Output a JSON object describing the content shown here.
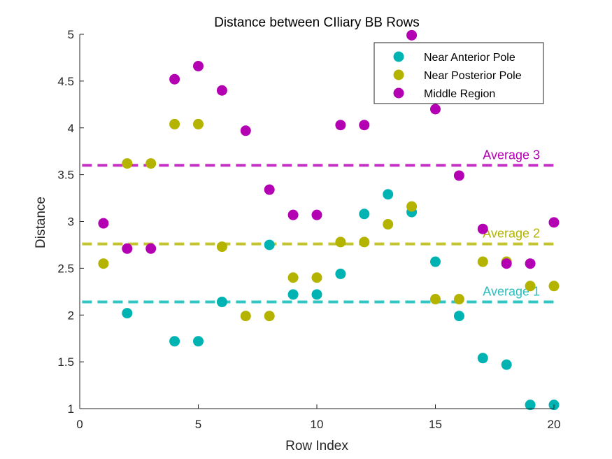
{
  "chart_data": {
    "type": "scatter",
    "title": "Distance between CIliary BB Rows",
    "xlabel": "Row Index",
    "ylabel": "Distance",
    "xlim": [
      0,
      20
    ],
    "ylim": [
      1,
      5
    ],
    "xticks": [
      "0",
      "5",
      "10",
      "15",
      "20"
    ],
    "yticks": [
      "1",
      "1.5",
      "2",
      "2.5",
      "3",
      "3.5",
      "4",
      "4.5",
      "5"
    ],
    "legend_position": "top-right",
    "grid": false,
    "series": [
      {
        "name": "Near Anterior Pole",
        "color": "#00b3b3",
        "points": [
          [
            2,
            2.02
          ],
          [
            4,
            1.72
          ],
          [
            5,
            1.72
          ],
          [
            6,
            2.14
          ],
          [
            8,
            2.75
          ],
          [
            9,
            2.22
          ],
          [
            10,
            2.22
          ],
          [
            11,
            2.44
          ],
          [
            12,
            3.08
          ],
          [
            13,
            3.29
          ],
          [
            14,
            3.1
          ],
          [
            15,
            2.57
          ],
          [
            16,
            1.99
          ],
          [
            17,
            1.54
          ],
          [
            18,
            1.47
          ],
          [
            19,
            1.04
          ],
          [
            20,
            1.04
          ]
        ]
      },
      {
        "name": "Near Posterior Pole",
        "color": "#b3b300",
        "points": [
          [
            1,
            2.55
          ],
          [
            2,
            3.62
          ],
          [
            3,
            3.62
          ],
          [
            4,
            4.04
          ],
          [
            5,
            4.04
          ],
          [
            6,
            2.73
          ],
          [
            7,
            1.99
          ],
          [
            8,
            1.99
          ],
          [
            9,
            2.4
          ],
          [
            10,
            2.4
          ],
          [
            11,
            2.78
          ],
          [
            12,
            2.78
          ],
          [
            13,
            2.97
          ],
          [
            14,
            3.16
          ],
          [
            15,
            2.17
          ],
          [
            16,
            2.17
          ],
          [
            17,
            2.57
          ],
          [
            18,
            2.57
          ],
          [
            19,
            2.31
          ],
          [
            20,
            2.31
          ]
        ]
      },
      {
        "name": "Middle Region",
        "color": "#b300b3",
        "points": [
          [
            1,
            2.98
          ],
          [
            2,
            2.71
          ],
          [
            3,
            2.71
          ],
          [
            4,
            4.52
          ],
          [
            5,
            4.66
          ],
          [
            6,
            4.4
          ],
          [
            7,
            3.97
          ],
          [
            8,
            3.34
          ],
          [
            9,
            3.07
          ],
          [
            10,
            3.07
          ],
          [
            11,
            4.03
          ],
          [
            12,
            4.03
          ],
          [
            13,
            4.85
          ],
          [
            14,
            4.99
          ],
          [
            15,
            4.2
          ],
          [
            16,
            3.49
          ],
          [
            17,
            2.92
          ],
          [
            18,
            2.55
          ],
          [
            19,
            2.55
          ],
          [
            20,
            2.99
          ]
        ]
      }
    ],
    "averages": [
      {
        "label": "Average 1",
        "value": 2.14,
        "color": "#33c4c4",
        "label_color": "#2bbcbc"
      },
      {
        "label": "Average 2",
        "value": 2.76,
        "color": "#c4c433",
        "label_color": "#b3b300"
      },
      {
        "label": "Average 3",
        "value": 3.6,
        "color": "#c433c4",
        "label_color": "#b300b3"
      }
    ]
  }
}
